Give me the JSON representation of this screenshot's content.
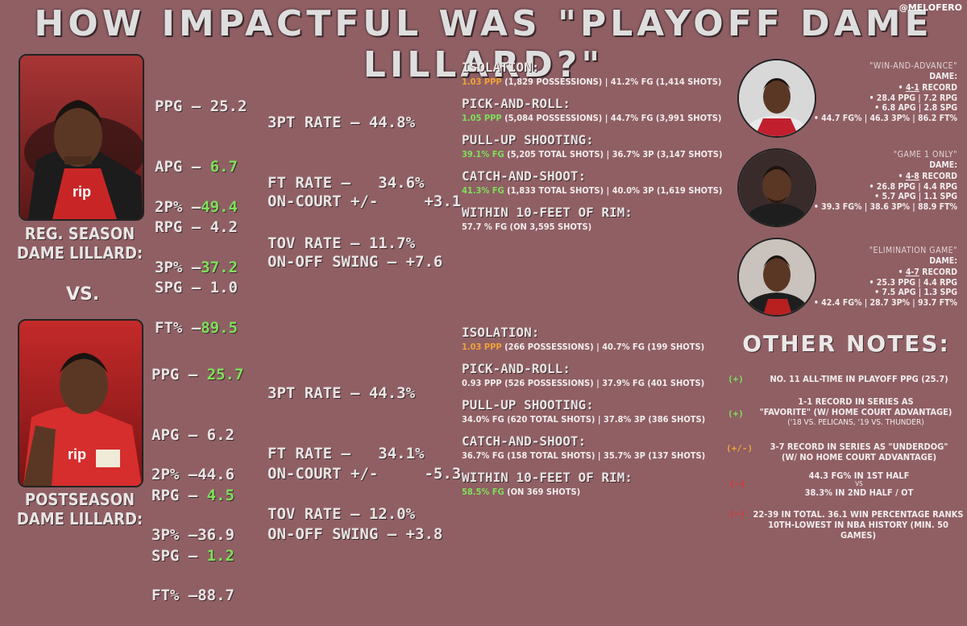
{
  "title": "HOW IMPACTFUL WAS \"PLAYOFF DAME LILLARD?\"",
  "handle": "@MELOFERO",
  "colors": {
    "background": "#8f5f64",
    "green": "#7fe05a",
    "orange": "#f0a23a",
    "red": "#e0342e"
  },
  "vs": "VS.",
  "regular": {
    "caption_1": "REG. SEASON",
    "caption_2": "DAME LILLARD:",
    "stats": {
      "ppg_label": "PPG –",
      "ppg": "25.2",
      "apg_label": "APG –",
      "apg": "6.7",
      "rpg_label": "RPG –",
      "rpg": "4.2",
      "spg_label": "SPG –",
      "spg": "1.0",
      "fg2_label": "2P% –",
      "fg2": "49.4",
      "fg3_label": "3P% –",
      "fg3": "37.2",
      "ft_label": "FT% –",
      "ft": "89.5",
      "rate3_label": "3PT RATE –",
      "rate3": "44.8%",
      "ftrate_label": "FT RATE –",
      "ftrate": "34.6%",
      "tov_label": "TOV RATE –",
      "tov": "11.7%",
      "oncourt_label": "ON-COURT +/-",
      "oncourt": "+3.1",
      "swing_label": "ON-OFF SWING –",
      "swing": "+7.6"
    },
    "plays": {
      "iso_h": "ISOLATION:",
      "iso_ppp": "1.03 PPP",
      "iso_d": " (1,829 POSSESSIONS) | 41.2% FG (1,414 SHOTS)",
      "pnr_h": "PICK-AND-ROLL:",
      "pnr_ppp": "1.05 PPP",
      "pnr_d": " (5,084 POSSESSIONS) | 44.7% FG (3,991 SHOTS)",
      "pull_h": "PULL-UP SHOOTING:",
      "pull_fg": "39.1% FG",
      "pull_d": " (5,205 TOTAL SHOTS) | 36.7% 3P (3,147 SHOTS)",
      "cas_h": "CATCH-AND-SHOOT:",
      "cas_fg": "41.3% FG",
      "cas_d": " (1,833 TOTAL SHOTS) | 40.0% 3P (1,619 SHOTS)",
      "rim_h": "WITHIN 10-FEET OF RIM:",
      "rim_fg": "57.7 % FG",
      "rim_d": " (ON 3,595 SHOTS)"
    }
  },
  "post": {
    "caption_1": "POSTSEASON",
    "caption_2": "DAME LILLARD:",
    "stats": {
      "ppg_label": "PPG –",
      "ppg": "25.7",
      "apg_label": "APG –",
      "apg": "6.2",
      "rpg_label": "RPG –",
      "rpg": "4.5",
      "spg_label": "SPG –",
      "spg": "1.2",
      "fg2_label": "2P% –",
      "fg2": "44.6",
      "fg3_label": "3P% –",
      "fg3": "36.9",
      "ft_label": "FT% –",
      "ft": "88.7",
      "rate3_label": "3PT RATE –",
      "rate3": "44.3%",
      "ftrate_label": "FT RATE –",
      "ftrate": "34.1%",
      "tov_label": "TOV RATE –",
      "tov": "12.0%",
      "oncourt_label": "ON-COURT +/-",
      "oncourt": "-5.3",
      "swing_label": "ON-OFF SWING –",
      "swing": "+3.8"
    },
    "plays": {
      "iso_h": "ISOLATION:",
      "iso_ppp": "1.03 PPP",
      "iso_d": " (266 POSSESSIONS) | 40.7% FG (199 SHOTS)",
      "pnr_h": "PICK-AND-ROLL:",
      "pnr_ppp": "0.93 PPP",
      "pnr_d": " (526 POSSESSIONS) | 37.9% FG (401 SHOTS)",
      "pull_h": "PULL-UP SHOOTING:",
      "pull_fg": "34.0% FG",
      "pull_d": " (620 TOTAL SHOTS) | 37.8% 3P (386 SHOTS)",
      "cas_h": "CATCH-AND-SHOOT:",
      "cas_fg": "36.7% FG",
      "cas_d": " (158 TOTAL SHOTS) | 35.7% 3P (137 SHOTS)",
      "rim_h": "WITHIN 10-FEET OF RIM:",
      "rim_fg": "58.5% FG",
      "rim_d": " (ON 369 SHOTS)"
    }
  },
  "scenarios": [
    {
      "title": "\"WIN-AND-ADVANCE\"",
      "who": "DAME:",
      "record": "4-1",
      "record_suffix": " RECORD",
      "l1": "• 28.4 PPG | 7.2 RPG",
      "l2": "• 6.8 APG | 2.8 SPG",
      "l3": "• 44.7 FG% | 46.3 3P% | 86.2 FT%"
    },
    {
      "title": "\"GAME 1 ONLY\"",
      "who": "DAME:",
      "record": "4-8",
      "record_suffix": " RECORD",
      "l1": "• 26.8 PPG | 4.4 RPG",
      "l2": "• 5.7 APG | 1.1 SPG",
      "l3": "• 39.3 FG% | 38.6 3P% | 88.9 FT%"
    },
    {
      "title": "\"ELIMINATION GAME\"",
      "who": "DAME:",
      "record": "4-7",
      "record_suffix": " RECORD",
      "l1": "• 25.3 PPG | 4.4 RPG",
      "l2": "• 7.5 APG | 1.3 SPG",
      "l3": "• 42.4 FG% | 28.7 3P% | 93.7 FT%"
    }
  ],
  "notes": {
    "heading": "OTHER NOTES:",
    "n1_sign": "(+)",
    "n1": "NO. 11 ALL-TIME IN PLAYOFF PPG (25.7)",
    "n2_sign": "(+)",
    "n2a": "1-1 RECORD IN SERIES AS",
    "n2b": "\"FAVORITE\" (W/ HOME COURT ADVANTAGE)",
    "n2c": "('18 VS. PELICANS, '19 VS. THUNDER)",
    "n3_sign": "(+/-)",
    "n3a": "3-7 RECORD IN SERIES AS  \"UNDERDOG\"",
    "n3b": "(W/ NO HOME COURT ADVANTAGE)",
    "n4_sign": "(–)",
    "n4a": "44.3 FG% IN 1ST HALF",
    "n4b": "VS",
    "n4c": "38.3% IN 2ND HALF / OT",
    "n5_sign": "(–)",
    "n5a": "22-39 IN TOTAL. 36.1 WIN PERCENTAGE RANKS",
    "n5b": "10TH-LOWEST IN NBA HISTORY (MIN. 50 GAMES)"
  }
}
